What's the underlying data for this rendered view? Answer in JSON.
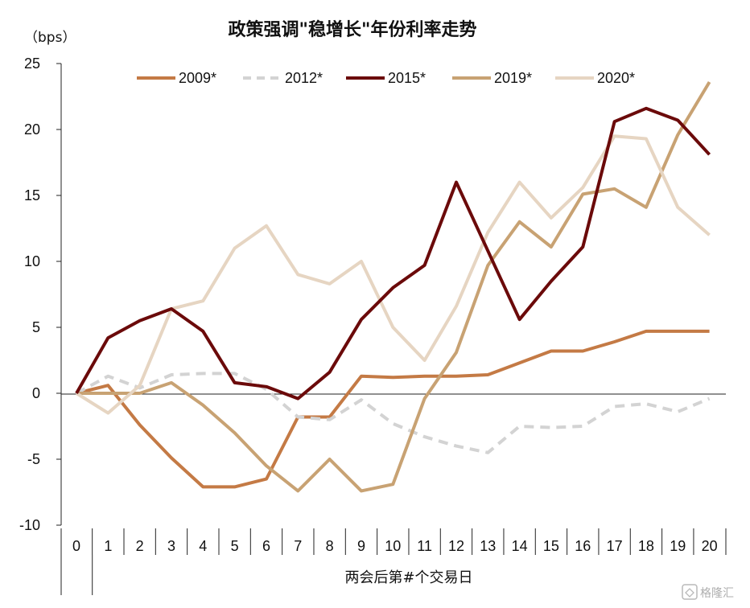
{
  "chart_data": {
    "type": "line",
    "title": "政策强调\"稳增长\"年份利率走势",
    "unit_label": "（bps）",
    "xlabel": "两会后第#个交易日",
    "x": [
      0,
      1,
      2,
      3,
      4,
      5,
      6,
      7,
      8,
      9,
      10,
      11,
      12,
      13,
      14,
      15,
      16,
      17,
      18,
      19,
      20
    ],
    "ylim": [
      -10,
      25
    ],
    "yticks": [
      25,
      20,
      15,
      10,
      5,
      0,
      -5,
      -10
    ],
    "negative_tick_color": "#e00000",
    "grid": false,
    "legend_position": "top",
    "series": [
      {
        "name": "2009*",
        "color": "#c47a45",
        "dash": false,
        "values": [
          0,
          0.6,
          -2.4,
          -4.9,
          -7.1,
          -7.1,
          -6.5,
          -1.8,
          -1.8,
          1.3,
          1.2,
          1.3,
          1.3,
          1.4,
          2.3,
          3.2,
          3.2,
          3.9,
          4.7,
          4.7,
          4.7
        ]
      },
      {
        "name": "2012*",
        "color": "#d3d3d3",
        "dash": true,
        "values": [
          0,
          1.3,
          0.4,
          1.4,
          1.5,
          1.5,
          0.3,
          -1.8,
          -2.0,
          -0.5,
          -2.3,
          -3.3,
          -4.0,
          -4.5,
          -2.5,
          -2.6,
          -2.5,
          -1.0,
          -0.8,
          -1.4,
          -0.4
        ]
      },
      {
        "name": "2015*",
        "color": "#6b0a0a",
        "dash": false,
        "values": [
          0,
          4.2,
          5.5,
          6.4,
          4.7,
          0.8,
          0.5,
          -0.4,
          1.6,
          5.6,
          8.0,
          9.7,
          16.0,
          10.8,
          5.6,
          8.5,
          11.1,
          20.6,
          21.6,
          20.7,
          18.1
        ]
      },
      {
        "name": "2019*",
        "color": "#c8a273",
        "dash": false,
        "values": [
          0,
          0,
          0,
          0.8,
          -0.9,
          -3.0,
          -5.5,
          -7.4,
          -5.0,
          -7.4,
          -6.9,
          -0.4,
          3.1,
          9.7,
          13.0,
          11.1,
          15.1,
          15.5,
          14.1,
          19.6,
          23.6
        ]
      },
      {
        "name": "2020*",
        "color": "#e6d5c2",
        "dash": false,
        "values": [
          0,
          -1.5,
          0.6,
          6.4,
          7.0,
          11.0,
          12.7,
          9.0,
          8.3,
          10.0,
          5.0,
          2.5,
          6.6,
          12.2,
          16.0,
          13.3,
          15.6,
          19.5,
          19.3,
          14.1,
          12.0
        ]
      }
    ]
  },
  "watermark": "格隆汇"
}
